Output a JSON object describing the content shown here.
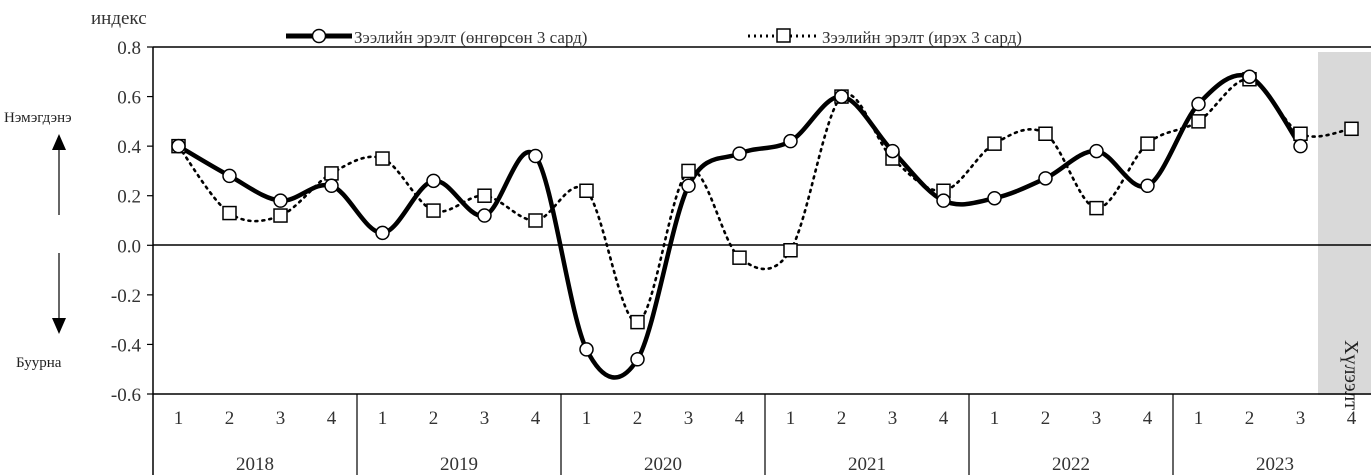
{
  "chart_data": {
    "type": "line",
    "ylabel": "индекс",
    "ylim": [
      -0.6,
      0.8
    ],
    "ytick_step": 0.2,
    "ytick_labels": [
      "0.8",
      "0.6",
      "0.4",
      "0.2",
      "0.0",
      "-0.2",
      "-0.4",
      "-0.6"
    ],
    "grid": false,
    "legend_position": "top",
    "quarter_labels": [
      "1",
      "2",
      "3",
      "4",
      "1",
      "2",
      "3",
      "4",
      "1",
      "2",
      "3",
      "4",
      "1",
      "2",
      "3",
      "4",
      "1",
      "2",
      "3",
      "4",
      "1",
      "2",
      "3",
      "4"
    ],
    "years": [
      "2018",
      "2019",
      "2020",
      "2021",
      "2022",
      "2023"
    ],
    "series": [
      {
        "name": "Зээлийн эрэлт (өнгөрсөн 3 сард)",
        "style": "solid",
        "marker": "circle",
        "values": [
          0.4,
          0.28,
          0.18,
          0.24,
          0.05,
          0.26,
          0.12,
          0.36,
          -0.42,
          -0.46,
          0.24,
          0.37,
          0.42,
          0.6,
          0.38,
          0.18,
          0.19,
          0.27,
          0.38,
          0.24,
          0.57,
          0.68,
          0.4,
          null
        ]
      },
      {
        "name": "Зээлийн эрэлт (ирэх 3 сард)",
        "style": "dotted",
        "marker": "square",
        "values": [
          0.4,
          0.13,
          0.12,
          0.29,
          0.35,
          0.14,
          0.2,
          0.1,
          0.22,
          -0.31,
          0.3,
          -0.05,
          -0.02,
          0.6,
          0.35,
          0.22,
          0.41,
          0.45,
          0.15,
          0.41,
          0.5,
          0.67,
          0.45,
          0.47
        ]
      }
    ],
    "annotations": {
      "up_label": "Нэмэгдэнэ",
      "down_label": "Буурна",
      "forecast_label": "Хүлээлт"
    },
    "forecast_region_color": "#d9d9d9",
    "line_color": "#000000"
  }
}
